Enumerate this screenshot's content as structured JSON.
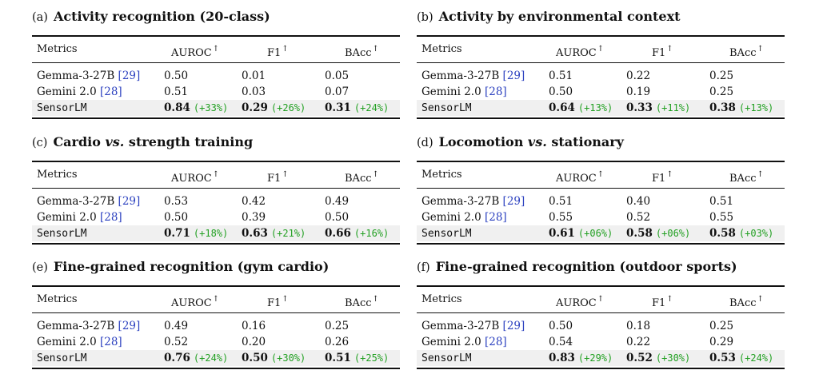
{
  "panels": [
    {
      "tag": "(a)",
      "title_parts": [
        "Activity recognition (20-class)"
      ],
      "headers": [
        "Metrics",
        "AUROC",
        "F1",
        "BAcc"
      ],
      "arrow": "↑",
      "rows": [
        {
          "model": "Gemma-3-27B",
          "cite": "[29]",
          "values": [
            "0.50",
            "0.01",
            "0.05"
          ]
        },
        {
          "model": "Gemini 2.0",
          "cite": "[28]",
          "values": [
            "0.51",
            "0.03",
            "0.07"
          ]
        },
        {
          "model": "SensorLM",
          "cite": "",
          "values": [
            "0.84",
            "0.29",
            "0.31"
          ],
          "gains": [
            "(+33%)",
            "(+26%)",
            "(+24%)"
          ]
        }
      ]
    },
    {
      "tag": "(b)",
      "title_parts": [
        "Activity by environmental context"
      ],
      "headers": [
        "Metrics",
        "AUROC",
        "F1",
        "BAcc"
      ],
      "arrow": "↑",
      "rows": [
        {
          "model": "Gemma-3-27B",
          "cite": "[29]",
          "values": [
            "0.51",
            "0.22",
            "0.25"
          ]
        },
        {
          "model": "Gemini 2.0",
          "cite": "[28]",
          "values": [
            "0.50",
            "0.19",
            "0.25"
          ]
        },
        {
          "model": "SensorLM",
          "cite": "",
          "values": [
            "0.64",
            "0.33",
            "0.38"
          ],
          "gains": [
            "(+13%)",
            "(+11%)",
            "(+13%)"
          ]
        }
      ]
    },
    {
      "tag": "(c)",
      "title_parts": [
        "Cardio ",
        "vs.",
        " strength training"
      ],
      "headers": [
        "Metrics",
        "AUROC",
        "F1",
        "BAcc"
      ],
      "arrow": "↑",
      "rows": [
        {
          "model": "Gemma-3-27B",
          "cite": "[29]",
          "values": [
            "0.53",
            "0.42",
            "0.49"
          ]
        },
        {
          "model": "Gemini 2.0",
          "cite": "[28]",
          "values": [
            "0.50",
            "0.39",
            "0.50"
          ]
        },
        {
          "model": "SensorLM",
          "cite": "",
          "values": [
            "0.71",
            "0.63",
            "0.66"
          ],
          "gains": [
            "(+18%)",
            "(+21%)",
            "(+16%)"
          ]
        }
      ]
    },
    {
      "tag": "(d)",
      "title_parts": [
        "Locomotion ",
        "vs.",
        " stationary"
      ],
      "headers": [
        "Metrics",
        "AUROC",
        "F1",
        "BAcc"
      ],
      "arrow": "↑",
      "rows": [
        {
          "model": "Gemma-3-27B",
          "cite": "[29]",
          "values": [
            "0.51",
            "0.40",
            "0.51"
          ]
        },
        {
          "model": "Gemini 2.0",
          "cite": "[28]",
          "values": [
            "0.55",
            "0.52",
            "0.55"
          ]
        },
        {
          "model": "SensorLM",
          "cite": "",
          "values": [
            "0.61",
            "0.58",
            "0.58"
          ],
          "gains": [
            "(+06%)",
            "(+06%)",
            "(+03%)"
          ]
        }
      ]
    },
    {
      "tag": "(e)",
      "title_parts": [
        "Fine-grained recognition (gym cardio)"
      ],
      "headers": [
        "Metrics",
        "AUROC",
        "F1",
        "BAcc"
      ],
      "arrow": "↑",
      "rows": [
        {
          "model": "Gemma-3-27B",
          "cite": "[29]",
          "values": [
            "0.49",
            "0.16",
            "0.25"
          ]
        },
        {
          "model": "Gemini 2.0",
          "cite": "[28]",
          "values": [
            "0.52",
            "0.20",
            "0.26"
          ]
        },
        {
          "model": "SensorLM",
          "cite": "",
          "values": [
            "0.76",
            "0.50",
            "0.51"
          ],
          "gains": [
            "(+24%)",
            "(+30%)",
            "(+25%)"
          ]
        }
      ]
    },
    {
      "tag": "(f)",
      "title_parts": [
        "Fine-grained recognition (outdoor sports)"
      ],
      "headers": [
        "Metrics",
        "AUROC",
        "F1",
        "BAcc"
      ],
      "arrow": "↑",
      "rows": [
        {
          "model": "Gemma-3-27B",
          "cite": "[29]",
          "values": [
            "0.50",
            "0.18",
            "0.25"
          ]
        },
        {
          "model": "Gemini 2.0",
          "cite": "[28]",
          "values": [
            "0.54",
            "0.22",
            "0.29"
          ]
        },
        {
          "model": "SensorLM",
          "cite": "",
          "values": [
            "0.83",
            "0.52",
            "0.53"
          ],
          "gains": [
            "(+29%)",
            "(+30%)",
            "(+24%)"
          ]
        }
      ]
    }
  ],
  "colors": {
    "gain": "#22a022",
    "cite": "#2a3fbf",
    "highlight_row": "#f0f0f0"
  }
}
